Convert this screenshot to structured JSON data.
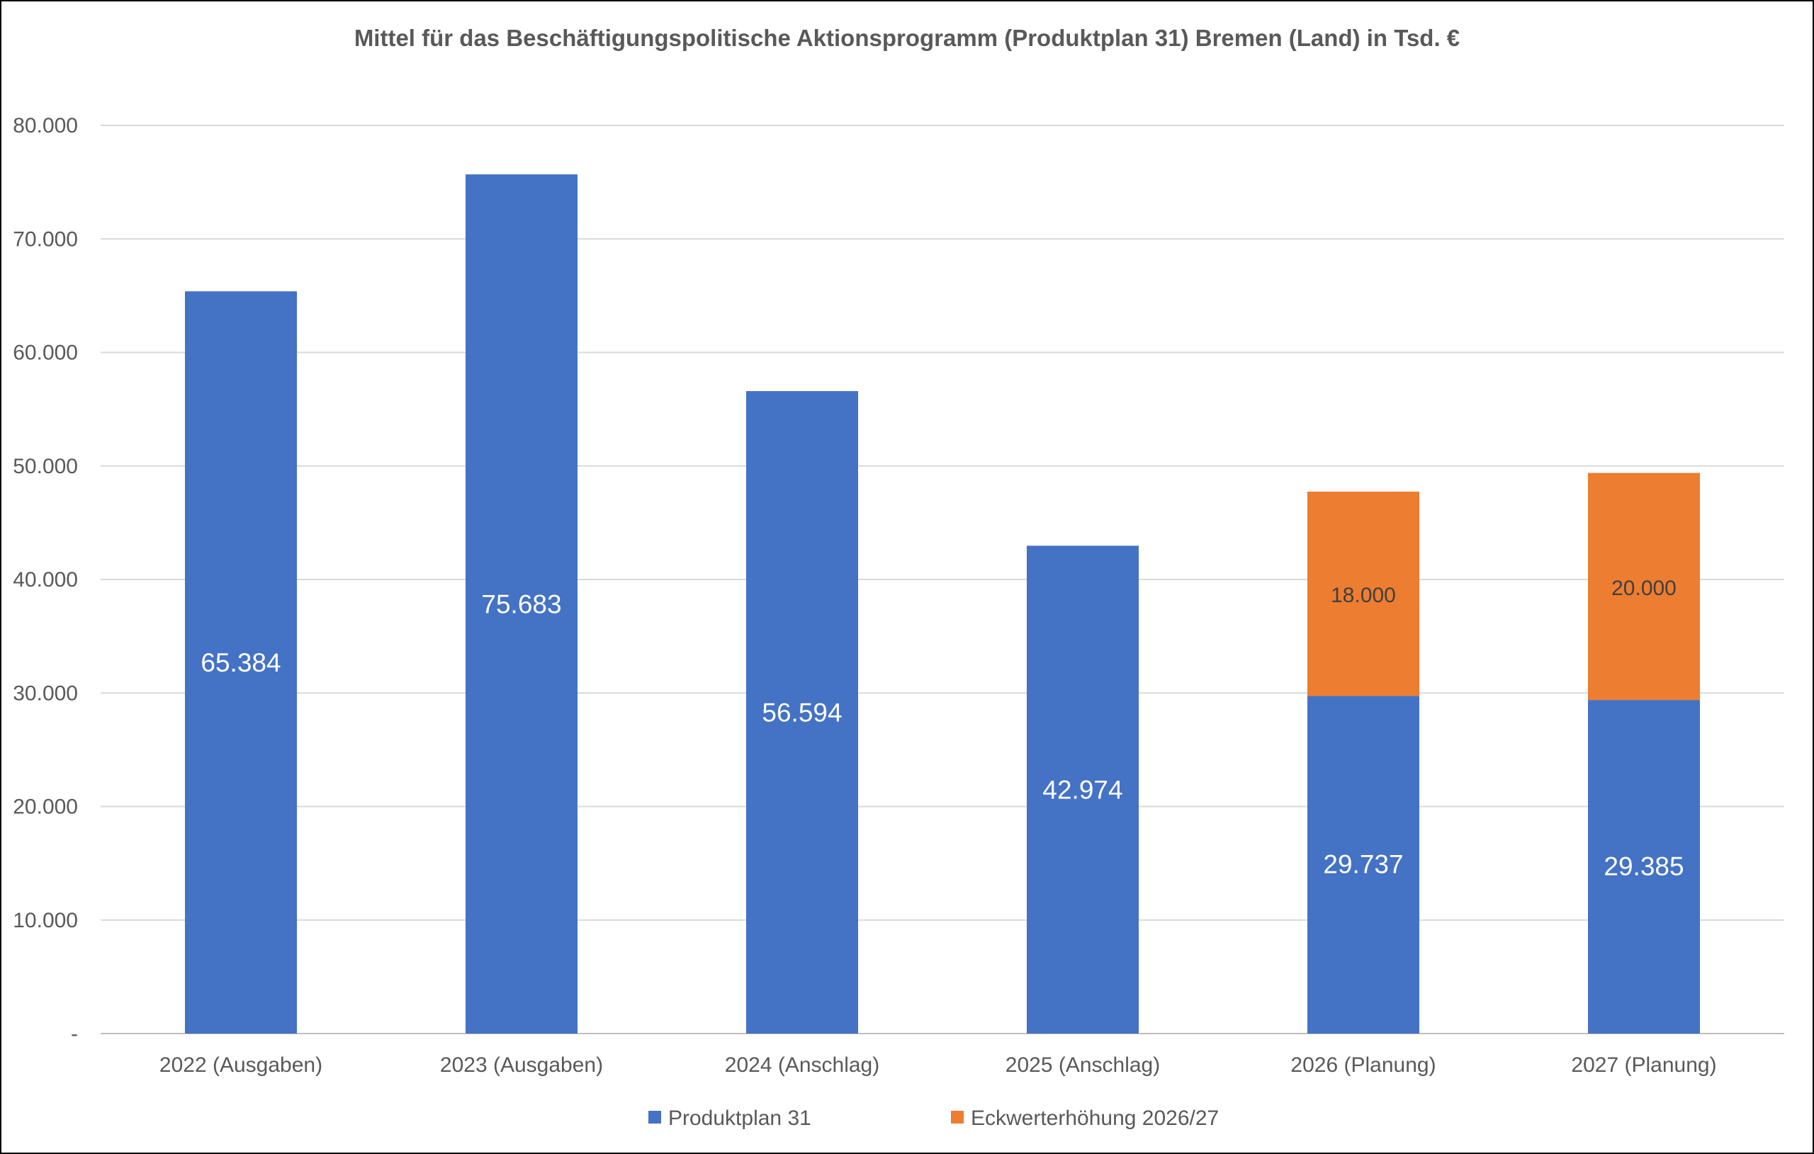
{
  "chart_data": {
    "type": "bar",
    "stacked": true,
    "title": "Mittel für das Beschäftigungspolitische Aktionsprogramm (Produktplan 31) Bremen (Land) in Tsd. €",
    "xlabel": "",
    "ylabel": "",
    "ylim": [
      0,
      80000
    ],
    "yticks": [
      0,
      10000,
      20000,
      30000,
      40000,
      50000,
      60000,
      70000,
      80000
    ],
    "ytick_labels": [
      "-",
      "10.000",
      "20.000",
      "30.000",
      "40.000",
      "50.000",
      "60.000",
      "70.000",
      "80.000"
    ],
    "grid": true,
    "legend_position": "bottom",
    "categories": [
      "2022 (Ausgaben)",
      "2023 (Ausgaben)",
      "2024 (Anschlag)",
      "2025 (Anschlag)",
      "2026 (Planung)",
      "2027 (Planung)"
    ],
    "series": [
      {
        "name": "Produktplan 31",
        "color": "#4472C4",
        "values": [
          65384,
          75683,
          56594,
          42974,
          29737,
          29385
        ],
        "labels": [
          "65.384",
          "75.683",
          "56.594",
          "42.974",
          "29.737",
          "29.385"
        ],
        "label_color": "#ffffff"
      },
      {
        "name": "Eckwerterhöhung 2026/27",
        "color": "#ED7D31",
        "values": [
          null,
          null,
          null,
          null,
          18000,
          20000
        ],
        "labels": [
          "",
          "",
          "",
          "",
          "18.000",
          "20.000"
        ],
        "label_color": "#404040"
      }
    ]
  }
}
